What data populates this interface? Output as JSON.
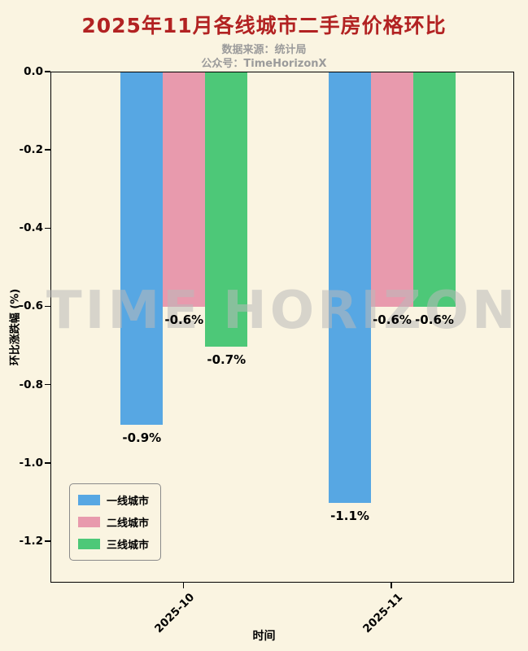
{
  "header": {
    "title": "2025年11月各线城市二手房价格环比",
    "subtitle_source": "数据来源：统计局",
    "subtitle_account": "公众号：TimeHorizonX"
  },
  "watermark": "TIME HORIZON",
  "chart_data": {
    "type": "bar",
    "title": "2025年11月各线城市二手房价格环比",
    "categories": [
      "2025-10",
      "2025-11"
    ],
    "series": [
      {
        "name": "一线城市",
        "color": "#57a7e3",
        "values": [
          -0.9,
          -1.1
        ]
      },
      {
        "name": "二线城市",
        "color": "#e89aad",
        "values": [
          -0.6,
          -0.6
        ]
      },
      {
        "name": "三线城市",
        "color": "#4dc878",
        "values": [
          -0.7,
          -0.6
        ]
      }
    ],
    "data_labels": [
      [
        "-0.9%",
        "-0.6%",
        "-0.7%"
      ],
      [
        "-1.1%",
        "-0.6%",
        "-0.6%"
      ]
    ],
    "xlabel": "时间",
    "ylabel": "环比涨跌幅 (%)",
    "ylim": [
      0,
      -1.3
    ],
    "yticks": [
      "0.0",
      "-0.2",
      "-0.4",
      "-0.6",
      "-0.8",
      "-1.0",
      "-1.2"
    ],
    "ytick_values": [
      0,
      -0.2,
      -0.4,
      -0.6,
      -0.8,
      -1.0,
      -1.2
    ],
    "grid": false,
    "legend_position": "lower left",
    "background": "#faf4e1"
  },
  "colors": {
    "background": "#faf4e1",
    "title": "#b22222",
    "subtitle": "#9b9b9b",
    "axis": "#000000",
    "watermark": "rgba(186,186,186,0.55)"
  }
}
